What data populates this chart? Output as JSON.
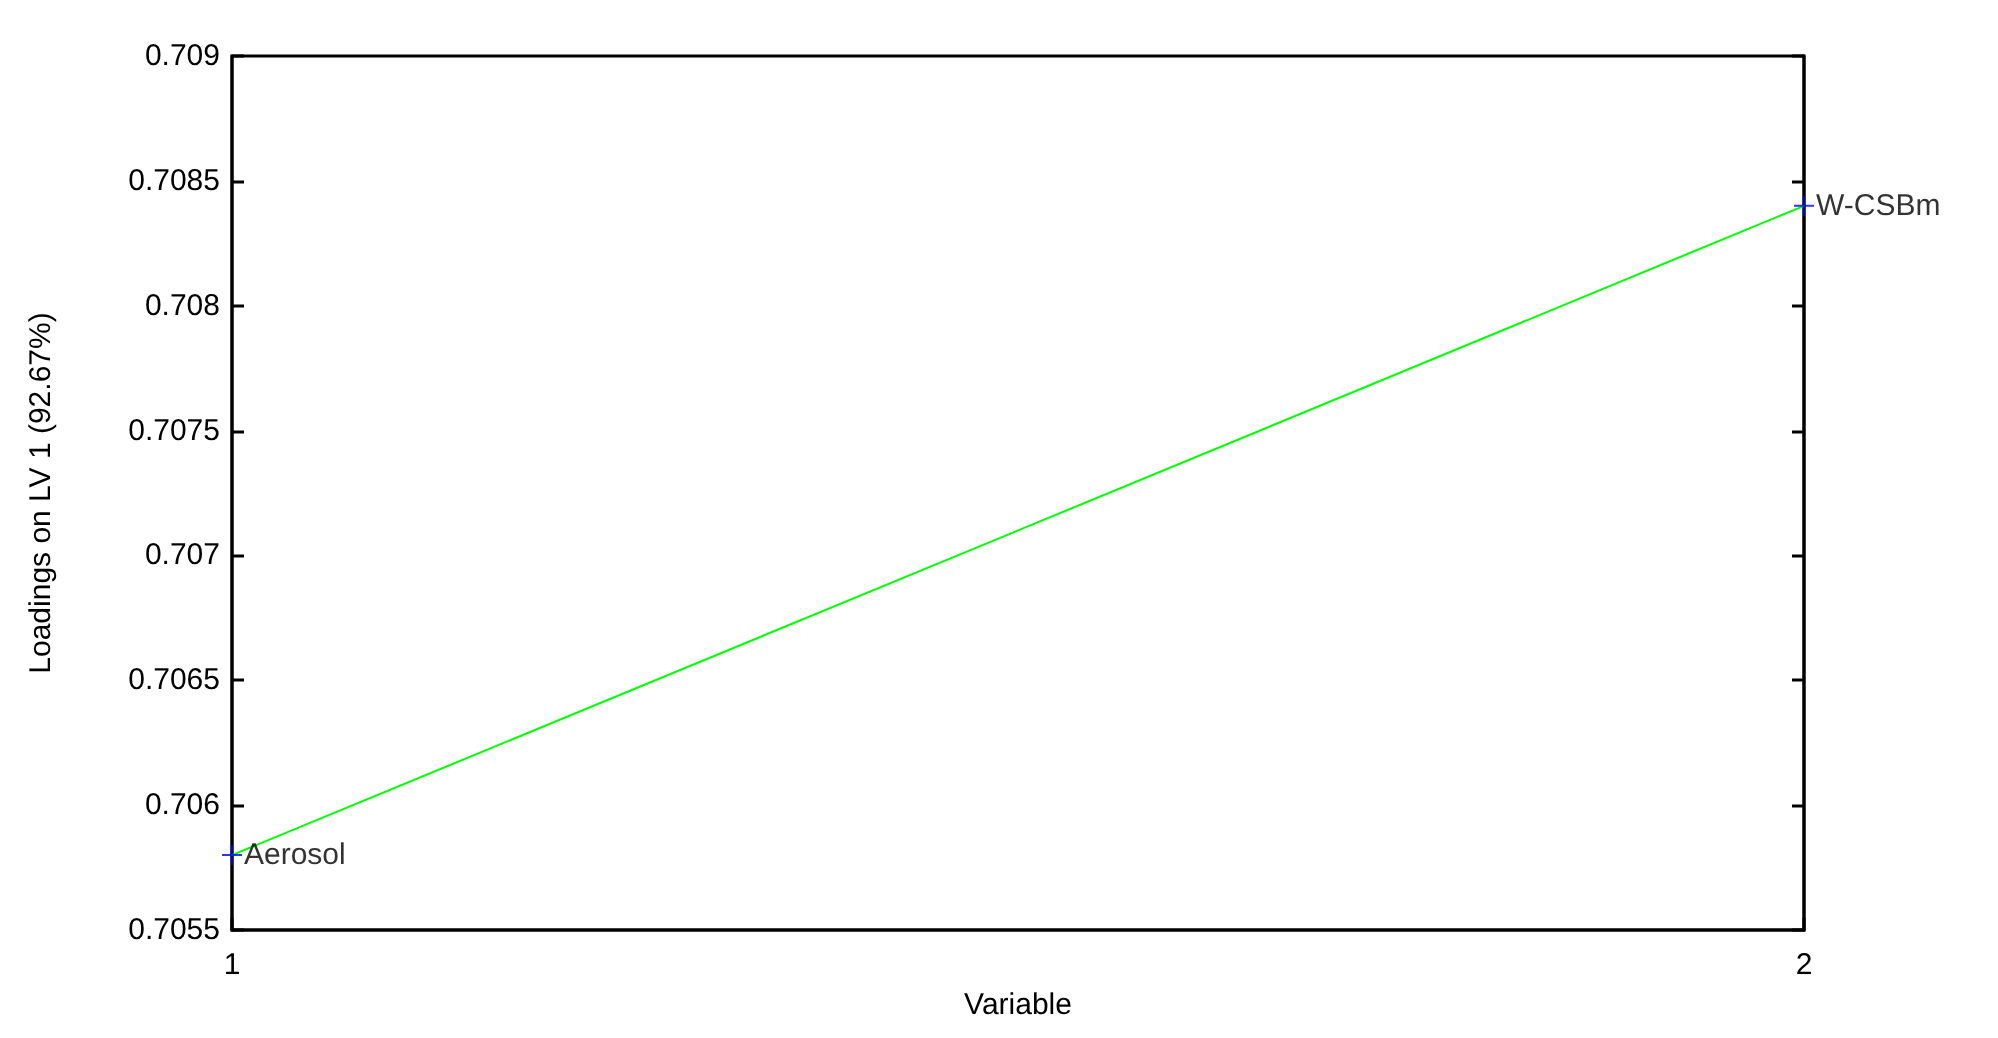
{
  "chart_data": {
    "type": "line",
    "xlabel": "Variable",
    "ylabel": "Loadings on LV 1 (92.67%)",
    "x": [
      1,
      2
    ],
    "series": [
      {
        "color": "#00ff00",
        "values": [
          0.7058,
          0.7084
        ],
        "marker": "none"
      },
      {
        "type": "scatter",
        "color": "#0000ff",
        "values": [
          0.7058,
          0.7084
        ],
        "marker": "cross"
      }
    ],
    "xlim": [
      1,
      2
    ],
    "xticks": [
      1,
      2
    ],
    "ylim": [
      0.7055,
      0.709
    ],
    "yticks": [
      0.7055,
      0.706,
      0.7065,
      0.707,
      0.7075,
      0.708,
      0.7085,
      0.709
    ],
    "annotations": [
      {
        "text": "Aerosol",
        "x": 1,
        "y": 0.7058
      },
      {
        "text": "W-CSBm",
        "x": 2,
        "y": 0.7084
      }
    ],
    "grid": false
  }
}
